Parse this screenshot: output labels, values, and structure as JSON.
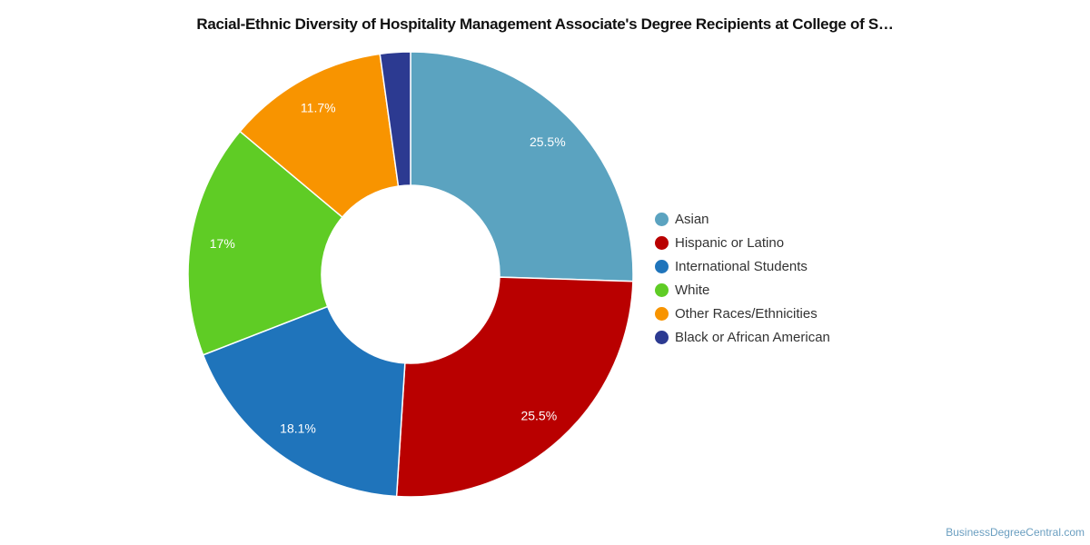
{
  "chart_data": {
    "type": "pie",
    "variant": "donut",
    "title": "Racial-Ethnic Diversity of Hospitality Management Associate's Degree Recipients at College of S…",
    "categories": [
      "Asian",
      "Hispanic or Latino",
      "International Students",
      "White",
      "Other Races/Ethnicities",
      "Black or African American"
    ],
    "values": [
      25.5,
      25.5,
      18.1,
      17,
      11.7,
      2.2
    ],
    "labels": [
      "25.5%",
      "25.5%",
      "18.1%",
      "17%",
      "11.7%",
      null
    ],
    "colors": [
      "#5ba3c0",
      "#b90000",
      "#1f74bb",
      "#5fcc25",
      "#f89400",
      "#2c3a91"
    ],
    "legend_position": "right"
  },
  "credit": "BusinessDegreeCentral.com"
}
